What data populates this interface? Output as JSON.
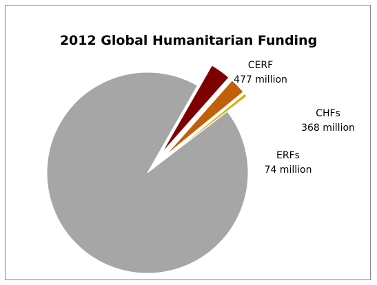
{
  "chart_data": {
    "type": "pie",
    "title": "2012 Global Humanitarian Funding",
    "slices": [
      {
        "label": "",
        "value": 13640,
        "color": "#a6a6a6"
      },
      {
        "label": "CERF",
        "value_label": "477 million",
        "value": 477,
        "color": "#7f0000"
      },
      {
        "label": "CHFs",
        "value_label": "368 million",
        "value": 368,
        "color": "#c0600a"
      },
      {
        "label": "ERFs",
        "value_label": "74 million",
        "value": 74,
        "color": "#d4b000"
      }
    ],
    "exploded_slices": [
      "CERF",
      "CHFs",
      "ERFs"
    ],
    "legend": "none",
    "border_color": "#868686"
  }
}
